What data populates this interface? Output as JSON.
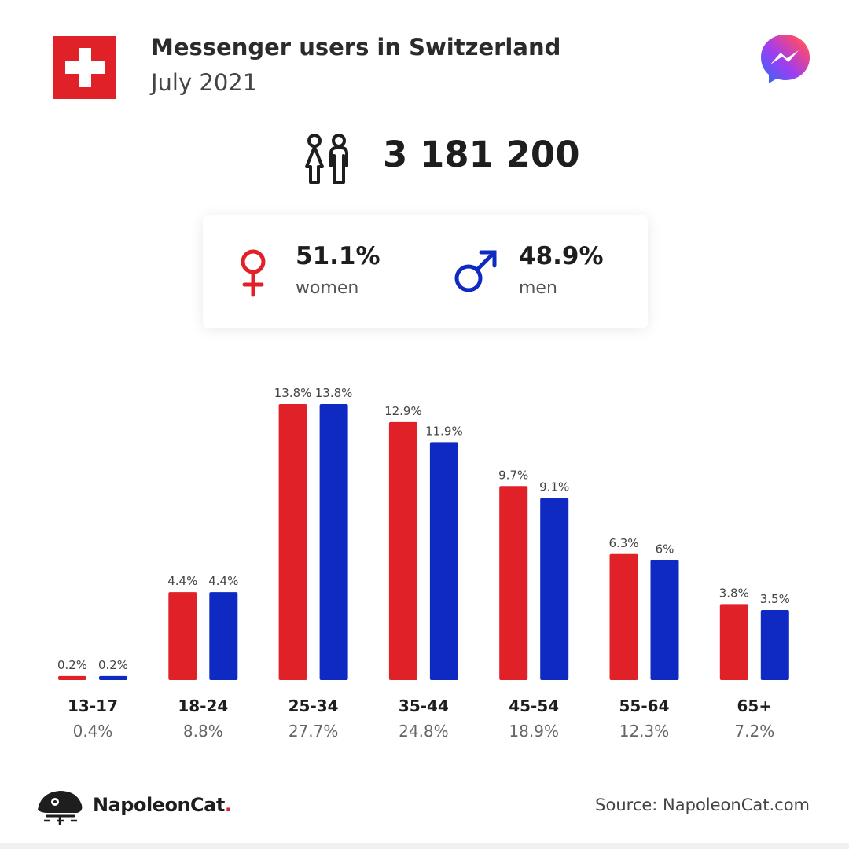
{
  "header": {
    "title": "Messenger users in Switzerland",
    "subtitle": "July 2021",
    "flag_icon": "swiss-flag-icon",
    "logo_icon": "messenger-logo-icon"
  },
  "total_users": "3 181 200",
  "gender": {
    "women": {
      "percent": "51.1%",
      "label": "women",
      "color": "#e02127"
    },
    "men": {
      "percent": "48.9%",
      "label": "men",
      "color": "#0e2ac2"
    }
  },
  "colors": {
    "women": "#e02127",
    "men": "#0e2ac2",
    "flag": "#e02127"
  },
  "chart_data": {
    "type": "bar",
    "categories": [
      "13-17",
      "18-24",
      "25-34",
      "35-44",
      "45-54",
      "55-64",
      "65+"
    ],
    "category_totals": [
      "0.4%",
      "8.8%",
      "27.7%",
      "24.8%",
      "18.9%",
      "12.3%",
      "7.2%"
    ],
    "series": [
      {
        "values": [
          0.2,
          4.4,
          13.8,
          12.9,
          9.7,
          6.3,
          3.8
        ],
        "labels": [
          "0.2%",
          "4.4%",
          "13.8%",
          "12.9%",
          "9.7%",
          "6.3%",
          "3.8%"
        ],
        "color": "#e02127"
      },
      {
        "values": [
          0.2,
          4.4,
          13.8,
          11.9,
          9.1,
          6.0,
          3.5
        ],
        "labels": [
          "0.2%",
          "4.4%",
          "13.8%",
          "11.9%",
          "9.1%",
          "6%",
          "3.5%"
        ],
        "color": "#0e2ac2"
      }
    ],
    "ylim": [
      0,
      13.8
    ],
    "grid": false,
    "legend": "none"
  },
  "footer": {
    "brand": "NapoleonCat",
    "brand_dot": ".",
    "source": "Source: NapoleonCat.com"
  }
}
